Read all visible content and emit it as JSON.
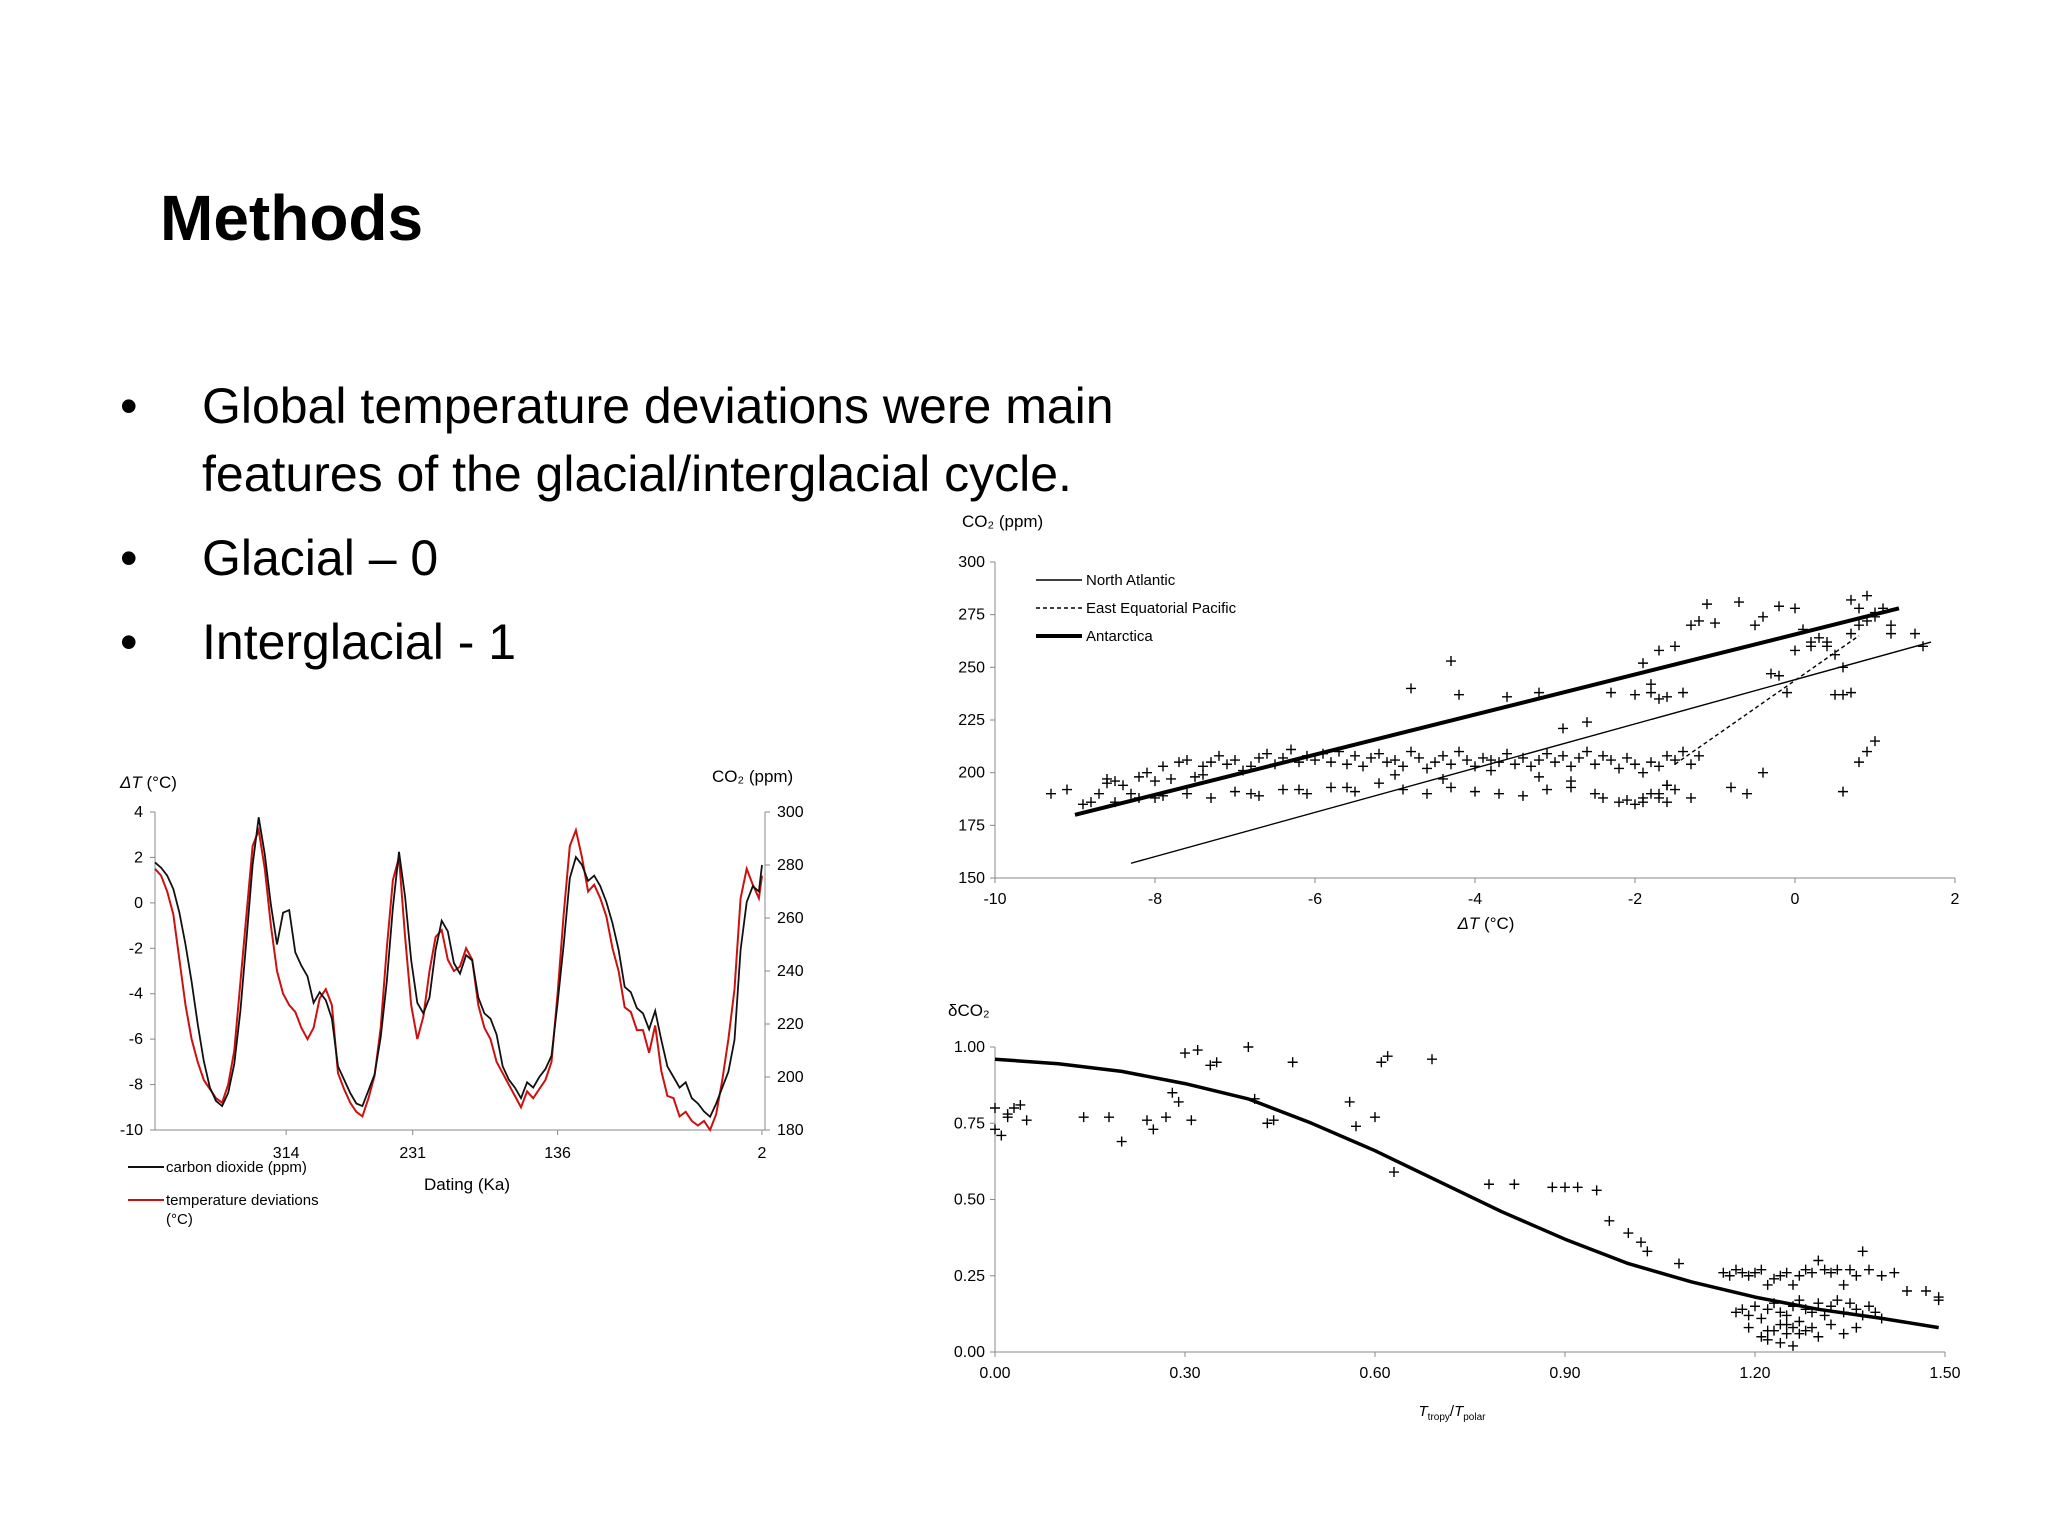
{
  "slide": {
    "title": "Methods",
    "bullets": [
      "Global temperature deviations were main features of the glacial/interglacial cycle.",
      "Glacial – 0",
      "Interglacial - 1"
    ],
    "bullet_marker": "•"
  },
  "chart_data": [
    {
      "id": "timeseries",
      "type": "line",
      "title": "",
      "xlabel": "Dating (Ka)",
      "xticks": [
        "314",
        "231",
        "136",
        "2"
      ],
      "xlim": [
        400,
        0
      ],
      "y_left": {
        "label_symbol": "ΔT",
        "label_unit": " (°C)",
        "ticks": [
          4,
          2,
          0,
          -2,
          -4,
          -6,
          -8,
          -10
        ],
        "lim": [
          -10,
          4
        ]
      },
      "y_right": {
        "label": "CO₂ (ppm)",
        "ticks": [
          300,
          280,
          260,
          240,
          220,
          200,
          180
        ],
        "lim": [
          180,
          300
        ]
      },
      "series": [
        {
          "name": "carbon dioxide (ppm)",
          "color": "#111111",
          "axis": "right",
          "x": [
            400,
            396,
            392,
            388,
            384,
            380,
            376,
            372,
            368,
            364,
            360,
            356,
            352,
            348,
            344,
            340,
            336,
            332,
            328,
            324,
            320,
            316,
            312,
            308,
            304,
            300,
            296,
            292,
            288,
            284,
            280,
            276,
            272,
            268,
            264,
            260,
            256,
            252,
            248,
            244,
            240,
            236,
            232,
            228,
            224,
            220,
            216,
            212,
            208,
            204,
            200,
            196,
            192,
            188,
            184,
            180,
            176,
            172,
            168,
            164,
            160,
            156,
            152,
            148,
            144,
            140,
            136,
            132,
            128,
            124,
            120,
            116,
            112,
            108,
            104,
            100,
            96,
            92,
            88,
            84,
            80,
            76,
            72,
            68,
            64,
            60,
            56,
            52,
            48,
            44,
            40,
            36,
            32,
            28,
            24,
            20,
            16,
            12,
            8,
            4,
            2
          ],
          "values": [
            281,
            279,
            276,
            271,
            262,
            250,
            236,
            220,
            206,
            196,
            191,
            189,
            194,
            205,
            225,
            252,
            280,
            298,
            284,
            265,
            250,
            262,
            263,
            247,
            242,
            238,
            228,
            232,
            229,
            222,
            204,
            199,
            194,
            190,
            189,
            195,
            201,
            215,
            236,
            264,
            285,
            268,
            244,
            228,
            224,
            230,
            248,
            259,
            255,
            243,
            239,
            246,
            244,
            230,
            224,
            222,
            216,
            204,
            199,
            196,
            192,
            198,
            196,
            200,
            203,
            208,
            228,
            250,
            275,
            283,
            280,
            274,
            276,
            272,
            266,
            258,
            248,
            234,
            232,
            226,
            224,
            218,
            225,
            214,
            204,
            200,
            196,
            198,
            192,
            190,
            187,
            185,
            190,
            196,
            202,
            214,
            248,
            266,
            272,
            270,
            280
          ]
        },
        {
          "name": "temperature deviations (°C)",
          "color": "#cc1111",
          "axis": "left",
          "x": [
            400,
            396,
            392,
            388,
            384,
            380,
            376,
            372,
            368,
            364,
            360,
            356,
            352,
            348,
            344,
            340,
            336,
            332,
            328,
            324,
            320,
            316,
            312,
            308,
            304,
            300,
            296,
            292,
            288,
            284,
            280,
            276,
            272,
            268,
            264,
            260,
            256,
            252,
            248,
            244,
            240,
            236,
            232,
            228,
            224,
            220,
            216,
            212,
            208,
            204,
            200,
            196,
            192,
            188,
            184,
            180,
            176,
            172,
            168,
            164,
            160,
            156,
            152,
            148,
            144,
            140,
            136,
            132,
            128,
            124,
            120,
            116,
            112,
            108,
            104,
            100,
            96,
            92,
            88,
            84,
            80,
            76,
            72,
            68,
            64,
            60,
            56,
            52,
            48,
            44,
            40,
            36,
            32,
            28,
            24,
            20,
            16,
            12,
            8,
            4,
            2
          ],
          "values": [
            1.5,
            1.2,
            0.5,
            -0.5,
            -2.5,
            -4.5,
            -6,
            -7,
            -7.8,
            -8.2,
            -8.6,
            -8.8,
            -8,
            -6.5,
            -3.5,
            -0.5,
            2.5,
            3.2,
            1.5,
            -1,
            -3,
            -4,
            -4.5,
            -4.8,
            -5.5,
            -6,
            -5.5,
            -4.2,
            -3.8,
            -4.5,
            -7.5,
            -8.2,
            -8.8,
            -9.2,
            -9.4,
            -8.6,
            -7.6,
            -5.5,
            -2,
            1,
            2,
            -1.5,
            -4.5,
            -6,
            -5,
            -3,
            -1.5,
            -1.2,
            -2.5,
            -3,
            -2.8,
            -2,
            -2.5,
            -4.5,
            -5.5,
            -6,
            -7,
            -7.5,
            -8,
            -8.5,
            -9,
            -8.3,
            -8.6,
            -8.2,
            -7.8,
            -7,
            -4,
            -0.5,
            2.5,
            3.2,
            2,
            0.5,
            0.8,
            0.2,
            -0.6,
            -2,
            -3,
            -4.6,
            -4.8,
            -5.6,
            -5.6,
            -6.6,
            -5.4,
            -7.4,
            -8.5,
            -8.6,
            -9.4,
            -9.2,
            -9.6,
            -9.8,
            -9.6,
            -10,
            -9.3,
            -7.8,
            -6,
            -3.8,
            0.2,
            1.5,
            0.8,
            0.2,
            1.2
          ]
        }
      ],
      "legend": [
        {
          "label": "carbon dioxide (ppm)",
          "color": "#111111"
        },
        {
          "label_lines": [
            "temperature deviations",
            "(°C)"
          ],
          "color": "#cc1111"
        }
      ],
      "legend_position": "bottom-left"
    },
    {
      "id": "co2_vs_dt",
      "type": "scatter",
      "title": "",
      "ylabel": "CO₂ (ppm)",
      "xlabel_symbol": "ΔT",
      "xlabel_unit": " (°C)",
      "xlim": [
        -10,
        2
      ],
      "ylim": [
        150,
        300
      ],
      "xticks": [
        -10,
        -8,
        -6,
        -4,
        -2,
        0,
        2
      ],
      "yticks": [
        150,
        175,
        200,
        225,
        250,
        275,
        300
      ],
      "marker": "+",
      "points_x": [
        -9.3,
        -9.1,
        -8.9,
        -8.8,
        -8.7,
        -8.6,
        -8.5,
        -8.4,
        -8.3,
        -8.2,
        -8.1,
        -8.0,
        -7.9,
        -7.8,
        -7.7,
        -7.6,
        -7.5,
        -7.4,
        -7.3,
        -7.2,
        -7.1,
        -7.0,
        -6.9,
        -6.8,
        -6.7,
        -6.6,
        -6.5,
        -6.4,
        -6.3,
        -6.2,
        -6.1,
        -6.0,
        -5.9,
        -5.8,
        -5.7,
        -5.6,
        -5.5,
        -5.4,
        -5.3,
        -5.2,
        -5.1,
        -5.0,
        -4.9,
        -4.8,
        -4.7,
        -4.6,
        -4.5,
        -4.4,
        -4.3,
        -4.2,
        -4.1,
        -4.0,
        -3.9,
        -3.8,
        -3.7,
        -3.6,
        -3.5,
        -3.4,
        -3.3,
        -3.2,
        -3.1,
        -3.0,
        -2.9,
        -2.8,
        -2.7,
        -2.6,
        -2.5,
        -2.4,
        -2.3,
        -2.2,
        -2.1,
        -2.0,
        -1.9,
        -1.8,
        -1.7,
        -1.6,
        -1.5,
        -1.4,
        -1.3,
        -1.2,
        -8.5,
        -8.2,
        -7.9,
        -7.6,
        -7.3,
        -7.0,
        -6.7,
        -6.4,
        -6.1,
        -5.8,
        -5.5,
        -5.2,
        -4.9,
        -4.6,
        -4.3,
        -4.0,
        -3.7,
        -3.4,
        -3.1,
        -2.8,
        -2.5,
        -2.2,
        -1.9,
        -1.6,
        -1.3,
        -4.3,
        -4.8,
        -4.2,
        -3.6,
        -3.2,
        -2.9,
        -2.6,
        -2.3,
        -2.0,
        -1.8,
        -1.7,
        -1.6,
        -1.5,
        -1.4,
        -1.3,
        -1.2,
        -1.1,
        -1.0,
        -0.7,
        -0.5,
        -0.4,
        -0.2,
        0.0,
        0.1,
        0.2,
        0.3,
        0.4,
        0.5,
        0.6,
        0.7,
        0.8,
        0.9,
        1.0,
        1.1,
        1.2,
        1.5,
        1.6,
        0.0,
        0.2,
        0.4,
        0.5,
        0.6,
        0.7,
        -0.1,
        -0.2,
        -0.3,
        -0.4,
        0.8,
        0.9,
        1.0,
        -1.8,
        -1.9,
        -1.7,
        -1.6,
        -1.5,
        -1.7,
        -1.8,
        -1.9,
        -2.0,
        -2.1,
        -1.7,
        -1.6,
        -2.4,
        -2.8,
        -3.2,
        -3.8,
        -4.4,
        -5.0,
        -5.6,
        -6.2,
        -6.8,
        -7.4,
        -8.0,
        -8.6,
        -0.8,
        -0.6,
        0.6,
        0.8,
        1.0,
        0.7,
        0.9,
        1.2
      ],
      "points_y": [
        190,
        192,
        185,
        186,
        190,
        195,
        196,
        194,
        190,
        198,
        200,
        196,
        203,
        197,
        205,
        206,
        198,
        203,
        205,
        208,
        204,
        206,
        201,
        203,
        207,
        209,
        204,
        207,
        211,
        205,
        208,
        206,
        209,
        205,
        210,
        204,
        208,
        203,
        207,
        209,
        205,
        206,
        203,
        210,
        207,
        202,
        205,
        208,
        204,
        210,
        206,
        203,
        207,
        201,
        205,
        209,
        204,
        207,
        203,
        206,
        209,
        205,
        208,
        203,
        207,
        210,
        204,
        208,
        206,
        202,
        207,
        204,
        200,
        205,
        203,
        208,
        206,
        210,
        204,
        208,
        186,
        188,
        189,
        190,
        188,
        191,
        189,
        192,
        190,
        193,
        191,
        195,
        192,
        190,
        193,
        191,
        190,
        189,
        192,
        193,
        190,
        186,
        188,
        186,
        188,
        253,
        240,
        237,
        236,
        238,
        221,
        224,
        238,
        237,
        238,
        235,
        236,
        260,
        238,
        270,
        272,
        280,
        271,
        281,
        270,
        274,
        279,
        278,
        268,
        262,
        264,
        260,
        256,
        250,
        266,
        270,
        272,
        276,
        278,
        270,
        266,
        260,
        258,
        260,
        262,
        237,
        237,
        238,
        238,
        246,
        247,
        200,
        205,
        210,
        215,
        242,
        252,
        258,
        194,
        192,
        188,
        190,
        186,
        185,
        187,
        190,
        194,
        188,
        196,
        198,
        206,
        197,
        199,
        193,
        192,
        190,
        199,
        188,
        197,
        193,
        190,
        191,
        278,
        274,
        282,
        284,
        266,
        240,
        246,
        260
      ],
      "fit_lines": [
        {
          "name": "North Atlantic",
          "style": "solid-thin",
          "x": [
            -8.3,
            1.7
          ],
          "y": [
            157,
            262
          ]
        },
        {
          "name": "East Equatorial Pacific",
          "style": "dashed",
          "x": [
            -1.5,
            0.8
          ],
          "y": [
            204,
            265
          ]
        },
        {
          "name": "Antarctica",
          "style": "solid-thick",
          "x": [
            -9.0,
            1.3
          ],
          "y": [
            180,
            278
          ]
        }
      ],
      "legend_position": "top-left"
    },
    {
      "id": "dco2_vs_tratio",
      "type": "scatter",
      "title": "",
      "ylabel": "δCO₂",
      "xlabel_T": "T",
      "xlabel_sub1": "tropy",
      "xlabel_slash": "/",
      "xlabel_sub2": "polar",
      "xlim": [
        0,
        1.5
      ],
      "ylim": [
        0,
        1
      ],
      "xticks": [
        "0.00",
        "0.30",
        "0.60",
        "0.90",
        "1.20",
        "1.50"
      ],
      "yticks": [
        "0.00",
        "0.25",
        "0.50",
        "0.75",
        "1.00"
      ],
      "marker": "+",
      "points_x": [
        0.0,
        0.01,
        0.02,
        0.03,
        0.04,
        0.05,
        0.14,
        0.18,
        0.2,
        0.24,
        0.25,
        0.27,
        0.28,
        0.29,
        0.3,
        0.31,
        0.32,
        0.34,
        0.35,
        0.4,
        0.41,
        0.43,
        0.44,
        0.47,
        0.56,
        0.57,
        0.6,
        0.61,
        0.62,
        0.63,
        0.69,
        0.78,
        0.82,
        0.88,
        0.9,
        0.92,
        0.95,
        0.97,
        1.0,
        1.02,
        1.03,
        1.08,
        1.15,
        1.16,
        1.17,
        1.18,
        1.19,
        1.2,
        1.21,
        1.22,
        1.23,
        1.24,
        1.25,
        1.26,
        1.27,
        1.28,
        1.29,
        1.3,
        1.31,
        1.32,
        1.33,
        1.34,
        1.35,
        1.36,
        1.37,
        1.38,
        1.4,
        1.42,
        1.44,
        1.47,
        1.49,
        1.17,
        1.18,
        1.19,
        1.2,
        1.21,
        1.22,
        1.23,
        1.24,
        1.25,
        1.26,
        1.27,
        1.28,
        1.29,
        1.3,
        1.31,
        1.32,
        1.33,
        1.34,
        1.35,
        1.36,
        1.37,
        1.38,
        1.39,
        1.4,
        1.22,
        1.24,
        1.25,
        1.26,
        1.27,
        1.21,
        1.23,
        1.25,
        1.27,
        1.29,
        1.19,
        1.22,
        1.24,
        1.26,
        1.28,
        1.3,
        1.32,
        1.34,
        1.36,
        0.0,
        0.02,
        1.49
      ],
      "points_y": [
        0.8,
        0.71,
        0.78,
        0.8,
        0.81,
        0.76,
        0.77,
        0.77,
        0.69,
        0.76,
        0.73,
        0.77,
        0.85,
        0.82,
        0.98,
        0.76,
        0.99,
        0.94,
        0.95,
        1.0,
        0.83,
        0.75,
        0.76,
        0.95,
        0.82,
        0.74,
        0.77,
        0.95,
        0.97,
        0.59,
        0.96,
        0.55,
        0.55,
        0.54,
        0.54,
        0.54,
        0.53,
        0.43,
        0.39,
        0.36,
        0.33,
        0.29,
        0.26,
        0.25,
        0.27,
        0.26,
        0.25,
        0.26,
        0.27,
        0.22,
        0.24,
        0.25,
        0.26,
        0.22,
        0.25,
        0.27,
        0.26,
        0.3,
        0.27,
        0.26,
        0.27,
        0.22,
        0.27,
        0.25,
        0.33,
        0.27,
        0.25,
        0.26,
        0.2,
        0.2,
        0.17,
        0.13,
        0.14,
        0.12,
        0.15,
        0.11,
        0.14,
        0.16,
        0.13,
        0.12,
        0.15,
        0.17,
        0.14,
        0.13,
        0.16,
        0.12,
        0.15,
        0.17,
        0.13,
        0.16,
        0.14,
        0.12,
        0.15,
        0.13,
        0.11,
        0.07,
        0.09,
        0.06,
        0.08,
        0.1,
        0.05,
        0.07,
        0.09,
        0.06,
        0.08,
        0.08,
        0.04,
        0.03,
        0.02,
        0.07,
        0.05,
        0.09,
        0.06,
        0.08,
        0.73,
        0.77,
        0.18
      ],
      "fit_curve": {
        "x": [
          0.0,
          0.1,
          0.2,
          0.3,
          0.4,
          0.5,
          0.6,
          0.7,
          0.8,
          0.9,
          1.0,
          1.1,
          1.2,
          1.3,
          1.4,
          1.49
        ],
        "y": [
          0.96,
          0.945,
          0.92,
          0.88,
          0.83,
          0.75,
          0.66,
          0.56,
          0.46,
          0.37,
          0.29,
          0.23,
          0.18,
          0.14,
          0.11,
          0.08
        ]
      }
    }
  ]
}
